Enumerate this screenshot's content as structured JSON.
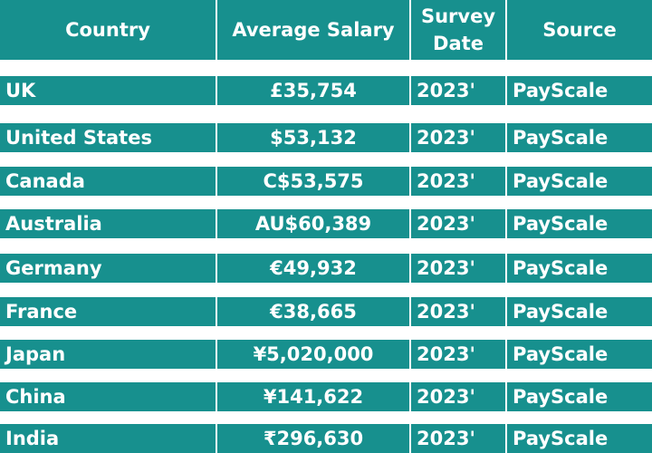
{
  "table": {
    "header": [
      "Country",
      "Average Salary",
      "Survey Date",
      "Source"
    ],
    "rows": [
      [
        "UK",
        "£35,754",
        "2023'",
        "PayScale"
      ],
      [
        "United States",
        "$53,132",
        "2023'",
        "PayScale"
      ],
      [
        "Canada",
        "C$53,575",
        "2023'",
        "PayScale"
      ],
      [
        "Australia",
        "AU$60,389",
        "2023'",
        "PayScale"
      ],
      [
        "Germany",
        "€49,932",
        "2023'",
        "PayScale"
      ],
      [
        "France",
        "€38,665",
        "2023'",
        "PayScale"
      ],
      [
        "Japan",
        "¥5,020,000",
        "2023'",
        "PayScale"
      ],
      [
        "China",
        "¥141,622",
        "2023'",
        "PayScale"
      ],
      [
        "India",
        "₹296,630",
        "2023'",
        "PayScale"
      ]
    ]
  }
}
